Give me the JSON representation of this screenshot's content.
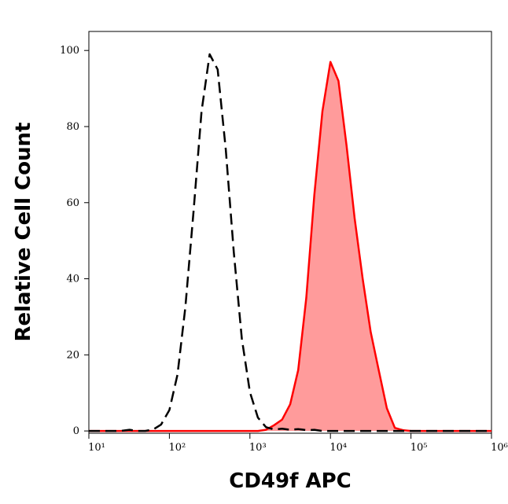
{
  "chart_data": {
    "type": "histogram-overlay",
    "x_label": "CD49f APC",
    "y_label": "Relative Cell Count",
    "xscale": "log",
    "xlim": [
      10,
      1000000
    ],
    "ylim": [
      -0.6,
      105
    ],
    "xticks": [
      {
        "value": 10,
        "label": "10¹"
      },
      {
        "value": 100,
        "label": "10²"
      },
      {
        "value": 1000,
        "label": "10³"
      },
      {
        "value": 10000,
        "label": "10⁴"
      },
      {
        "value": 100000,
        "label": "10⁵"
      },
      {
        "value": 1000000,
        "label": "10⁶"
      }
    ],
    "yticks": [
      0,
      20,
      40,
      60,
      80,
      100
    ],
    "x": [
      10,
      13,
      16,
      20,
      25,
      32,
      40,
      50,
      63,
      79,
      100,
      126,
      158,
      200,
      251,
      316,
      398,
      501,
      631,
      794,
      1000,
      1259,
      1585,
      1995,
      2512,
      3162,
      3981,
      5012,
      6310,
      7943,
      10000,
      12589,
      15849,
      19953,
      25119,
      31623,
      39811,
      50119,
      63096,
      79433,
      100000,
      125893,
      158489,
      199526,
      251189,
      316228,
      398107,
      501187,
      630957,
      794328,
      1000000
    ],
    "series": [
      {
        "color": "#000000",
        "style": "dashed",
        "filled": false,
        "values": [
          0,
          0,
          0,
          0,
          0,
          0.3,
          0,
          0,
          0.4,
          1.7,
          5.5,
          14.8,
          32.5,
          57.9,
          84,
          99,
          95,
          74,
          47,
          24.3,
          10.2,
          3.5,
          1.0,
          0.4,
          0.6,
          0.3,
          0.5,
          0.2,
          0.3,
          0,
          0,
          0,
          0,
          0,
          0,
          0,
          0,
          0,
          0,
          0,
          0,
          0,
          0,
          0,
          0,
          0,
          0,
          0,
          0,
          0,
          0
        ]
      },
      {
        "color": "#ff0000",
        "fill": "#ff9b9b",
        "style": "solid",
        "filled": true,
        "values": [
          0,
          0,
          0,
          0,
          0,
          0,
          0,
          0,
          0,
          0,
          0,
          0,
          0,
          0,
          0,
          0,
          0,
          0,
          0,
          0,
          0,
          0,
          0.3,
          1.5,
          3,
          7,
          16,
          35,
          62,
          84,
          97,
          92,
          75,
          56,
          40,
          26,
          16,
          6,
          0.8,
          0.2,
          0,
          0,
          0,
          0,
          0,
          0,
          0,
          0,
          0,
          0,
          0
        ]
      }
    ]
  }
}
